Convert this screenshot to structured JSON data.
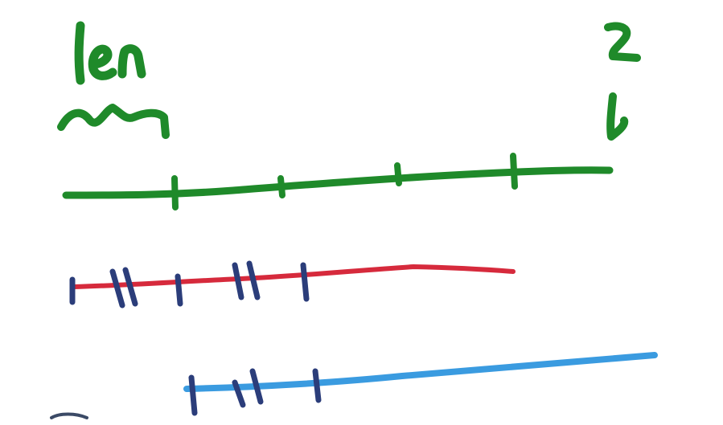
{
  "sketch": {
    "labels": {
      "left_label": "len",
      "right_label": "2\nb"
    },
    "colors": {
      "green": "#1f8a2a",
      "red": "#d62a3c",
      "blue": "#3a9be0",
      "navy_ticks": "#2b3d7a",
      "background": "#ffffff"
    },
    "lines": [
      {
        "name": "green-line",
        "color": "green",
        "tick_count": 4
      },
      {
        "name": "red-line",
        "color": "red",
        "tick_count": 7
      },
      {
        "name": "blue-line",
        "color": "blue",
        "tick_count": 4
      }
    ]
  }
}
